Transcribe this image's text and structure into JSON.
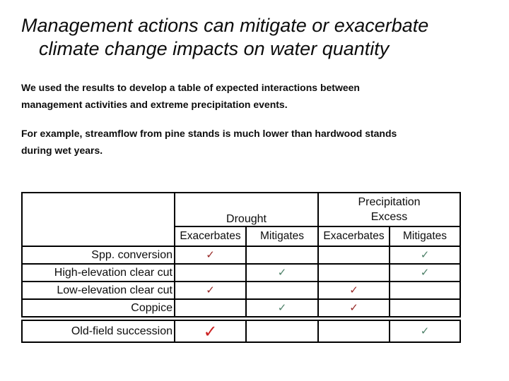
{
  "slide": {
    "title": {
      "line1": "Management actions can mitigate or exacerbate",
      "line2": "climate change impacts on water quantity"
    },
    "paragraphs": [
      {
        "lines": [
          "We used the results to develop a table of expected interactions between",
          "management activities and extreme precipitation events."
        ]
      },
      {
        "lines": [
          "For example, streamflow from pine stands is much lower than hardwood stands",
          "during wet years."
        ]
      }
    ]
  },
  "table": {
    "groups": [
      {
        "label": "Drought"
      },
      {
        "line1": "Precipitation",
        "line2": "Excess"
      }
    ],
    "sub_headers": [
      "Exacerbates",
      "Mitigates",
      "Exacerbates",
      "Mitigates"
    ],
    "rows": [
      {
        "label": "Spp. conversion",
        "cells": [
          "red",
          "",
          "",
          "green"
        ]
      },
      {
        "label": "High-elevation clear cut",
        "cells": [
          "",
          "green",
          "",
          "green"
        ]
      },
      {
        "label": "Low-elevation clear cut",
        "cells": [
          "red",
          "",
          "red",
          ""
        ]
      },
      {
        "label": "Coppice",
        "cells": [
          "",
          "green",
          "red",
          ""
        ]
      }
    ],
    "footer_row": {
      "label": "Old-field succession",
      "cells": [
        "red-large",
        "",
        "",
        "green"
      ]
    },
    "check_glyph": "✓",
    "colors": {
      "red": "#972826",
      "red-large": "#CC2222",
      "green": "#4D8068"
    }
  }
}
